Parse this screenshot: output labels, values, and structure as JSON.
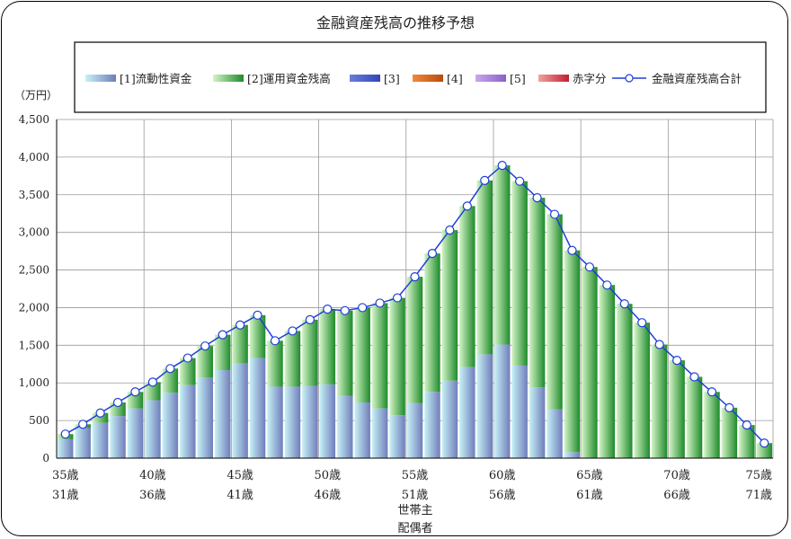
{
  "chart_data": {
    "type": "bar",
    "stacked": true,
    "title": "金融資産残高の推移予想",
    "yunit": "（万円）",
    "ylim": [
      0,
      4500
    ],
    "ytick_step": 500,
    "ytick_labels": [
      "0",
      "500",
      "1,000",
      "1,500",
      "2,000",
      "2,500",
      "3,000",
      "3,500",
      "4,000",
      "4,500"
    ],
    "grid": true,
    "legend_position": "top",
    "legend": {
      "series": [
        "[1]流動性資金",
        "[2]運用資金残高",
        "[3]",
        "[4]",
        "[5]",
        "赤字分"
      ],
      "line": "金融資産残高合計"
    },
    "x_age_head": [
      35,
      36,
      37,
      38,
      39,
      40,
      41,
      42,
      43,
      44,
      45,
      46,
      47,
      48,
      49,
      50,
      51,
      52,
      53,
      54,
      55,
      56,
      57,
      58,
      59,
      60,
      61,
      62,
      63,
      64,
      65,
      66,
      67,
      68,
      69,
      70,
      71,
      72,
      73,
      74,
      75
    ],
    "x_age_spouse": [
      31,
      32,
      33,
      34,
      35,
      36,
      37,
      38,
      39,
      40,
      41,
      42,
      43,
      44,
      45,
      46,
      47,
      48,
      49,
      50,
      51,
      52,
      53,
      54,
      55,
      56,
      57,
      58,
      59,
      60,
      61,
      62,
      63,
      64,
      65,
      66,
      67,
      68,
      69,
      70,
      71
    ],
    "x_tick_labels_head": [
      "35歳",
      "40歳",
      "45歳",
      "50歳",
      "55歳",
      "60歳",
      "65歳",
      "70歳",
      "75歳"
    ],
    "x_tick_labels_spouse": [
      "31歳",
      "36歳",
      "41歳",
      "46歳",
      "51歳",
      "56歳",
      "61歳",
      "66歳",
      "71歳"
    ],
    "x_row_labels": [
      "世帯主",
      "配偶者"
    ],
    "colors": {
      "series1": [
        "#c7f2f6",
        "#6f7dbb"
      ],
      "series2": [
        "#d3f4c6",
        "#1e8a2a"
      ],
      "series3": [
        "#6a7fd6",
        "#3345b8"
      ],
      "series4": [
        "#f08a3a",
        "#b84a10"
      ],
      "series5": [
        "#c9a6ee",
        "#8a60c8"
      ],
      "deficit": [
        "#f2a0a0",
        "#c02030"
      ],
      "line": "#1f3fd6"
    },
    "series": [
      {
        "name": "[1]流動性資金",
        "values": [
          250,
          400,
          470,
          560,
          660,
          770,
          870,
          970,
          1070,
          1170,
          1260,
          1330,
          950,
          950,
          960,
          980,
          830,
          740,
          660,
          570,
          730,
          880,
          1030,
          1210,
          1380,
          1510,
          1230,
          940,
          650,
          80,
          0,
          0,
          0,
          0,
          0,
          0,
          0,
          0,
          0,
          0,
          0
        ]
      },
      {
        "name": "[2]運用資金残高",
        "values": [
          70,
          50,
          130,
          180,
          220,
          240,
          320,
          360,
          420,
          470,
          510,
          570,
          610,
          740,
          880,
          1000,
          1130,
          1260,
          1400,
          1560,
          1680,
          1840,
          2000,
          2140,
          2310,
          2380,
          2450,
          2520,
          2590,
          2680,
          2540,
          2300,
          2050,
          1800,
          1510,
          1300,
          1080,
          880,
          670,
          440,
          200
        ]
      },
      {
        "name": "[3]",
        "values": []
      },
      {
        "name": "[4]",
        "values": []
      },
      {
        "name": "[5]",
        "values": []
      },
      {
        "name": "赤字分",
        "values": []
      }
    ],
    "line_series": {
      "name": "金融資産残高合計",
      "values": [
        320,
        450,
        600,
        740,
        880,
        1010,
        1190,
        1330,
        1490,
        1640,
        1770,
        1900,
        1560,
        1690,
        1840,
        1980,
        1960,
        2000,
        2060,
        2130,
        2410,
        2720,
        3030,
        3350,
        3690,
        3890,
        3680,
        3460,
        3240,
        2760,
        2540,
        2300,
        2050,
        1800,
        1510,
        1300,
        1080,
        880,
        670,
        440,
        200
      ]
    }
  }
}
